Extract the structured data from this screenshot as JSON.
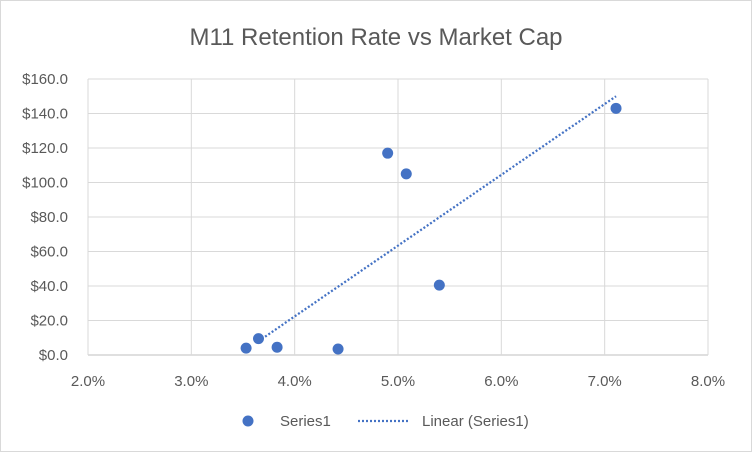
{
  "chart_data": {
    "type": "scatter",
    "title": "M11 Retention Rate vs Market Cap",
    "xlabel": "",
    "ylabel": "",
    "xlim": [
      0.02,
      0.08
    ],
    "ylim": [
      0,
      160
    ],
    "x_ticks": [
      0.02,
      0.03,
      0.04,
      0.05,
      0.06,
      0.07,
      0.08
    ],
    "x_tick_labels": [
      "2.0%",
      "3.0%",
      "4.0%",
      "5.0%",
      "6.0%",
      "7.0%",
      "8.0%"
    ],
    "y_ticks": [
      0,
      20,
      40,
      60,
      80,
      100,
      120,
      140,
      160
    ],
    "y_tick_labels": [
      "$0.0",
      "$20.0",
      "$40.0",
      "$60.0",
      "$80.0",
      "$100.0",
      "$120.0",
      "$140.0",
      "$160.0"
    ],
    "grid": true,
    "legend_position": "bottom",
    "series": [
      {
        "name": "Series1",
        "color": "#4472c4",
        "points": [
          {
            "x": 0.0353,
            "y": 4.0
          },
          {
            "x": 0.0365,
            "y": 9.5
          },
          {
            "x": 0.0383,
            "y": 4.5
          },
          {
            "x": 0.0442,
            "y": 3.5
          },
          {
            "x": 0.049,
            "y": 117.0
          },
          {
            "x": 0.0508,
            "y": 105.0
          },
          {
            "x": 0.054,
            "y": 40.5
          },
          {
            "x": 0.0711,
            "y": 143.0
          }
        ]
      }
    ],
    "trendline": {
      "name": "Linear (Series1)",
      "type": "linear",
      "color": "#4472c4",
      "style": "dotted",
      "from": {
        "x": 0.0365,
        "y": 8.0
      },
      "to": {
        "x": 0.0711,
        "y": 150.0
      }
    }
  }
}
